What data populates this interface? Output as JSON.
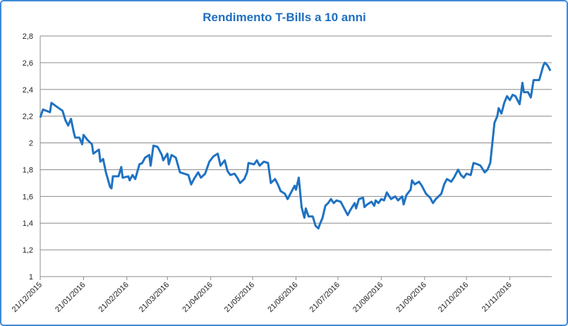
{
  "chart_data": {
    "type": "line",
    "title": "Rendimento T-Bills a 10 anni",
    "xlim": [
      "2015-12-21",
      "2016-12-21"
    ],
    "xticks": [
      {
        "value": "2015-12-21",
        "label": "21/12/2015"
      },
      {
        "value": "2016-01-21",
        "label": "21/01/2016"
      },
      {
        "value": "2016-02-21",
        "label": "21/02/2016"
      },
      {
        "value": "2016-03-21",
        "label": "21/03/2016"
      },
      {
        "value": "2016-04-21",
        "label": "21/04/2016"
      },
      {
        "value": "2016-05-21",
        "label": "21/05/2016"
      },
      {
        "value": "2016-06-21",
        "label": "21/06/2016"
      },
      {
        "value": "2016-07-21",
        "label": "21/07/2016"
      },
      {
        "value": "2016-08-21",
        "label": "21/08/2016"
      },
      {
        "value": "2016-09-21",
        "label": "21/09/2016"
      },
      {
        "value": "2016-10-21",
        "label": "21/10/2016"
      },
      {
        "value": "2016-11-21",
        "label": "21/11/2016"
      }
    ],
    "ylim": [
      1,
      2.8
    ],
    "yticks": [
      1,
      {
        "value": 1.2,
        "label": "1,2"
      },
      {
        "value": 1.4,
        "label": "1,4"
      },
      {
        "value": 1.6,
        "label": "1,6"
      },
      {
        "value": 1.8,
        "label": "1,8"
      },
      2,
      {
        "value": 2.2,
        "label": "2,2"
      },
      {
        "value": 2.4,
        "label": "2,4"
      },
      {
        "value": 2.6,
        "label": "2,6"
      },
      {
        "value": 2.8,
        "label": "2,8"
      }
    ],
    "grid": true,
    "color": "#1f72c2",
    "x": [
      "2015-12-21",
      "2015-12-23",
      "2015-12-28",
      "2015-12-29",
      "2016-01-02",
      "2016-01-06",
      "2016-01-08",
      "2016-01-10",
      "2016-01-12",
      "2016-01-14",
      "2016-01-15",
      "2016-01-18",
      "2016-01-20",
      "2016-01-21",
      "2016-01-24",
      "2016-01-27",
      "2016-01-28",
      "2016-02-01",
      "2016-02-02",
      "2016-02-04",
      "2016-02-06",
      "2016-02-09",
      "2016-02-10",
      "2016-02-11",
      "2016-02-15",
      "2016-02-17",
      "2016-02-18",
      "2016-02-22",
      "2016-02-23",
      "2016-02-25",
      "2016-02-27",
      "2016-03-01",
      "2016-03-03",
      "2016-03-05",
      "2016-03-08",
      "2016-03-09",
      "2016-03-11",
      "2016-03-14",
      "2016-03-17",
      "2016-03-18",
      "2016-03-21",
      "2016-03-22",
      "2016-03-24",
      "2016-03-27",
      "2016-03-30",
      "2016-04-02",
      "2016-04-05",
      "2016-04-07",
      "2016-04-09",
      "2016-04-12",
      "2016-04-14",
      "2016-04-17",
      "2016-04-20",
      "2016-04-23",
      "2016-04-26",
      "2016-04-28",
      "2016-05-01",
      "2016-05-03",
      "2016-05-05",
      "2016-05-08",
      "2016-05-10",
      "2016-05-12",
      "2016-05-15",
      "2016-05-17",
      "2016-05-18",
      "2016-05-22",
      "2016-05-24",
      "2016-05-26",
      "2016-05-29",
      "2016-06-01",
      "2016-06-03",
      "2016-06-06",
      "2016-06-08",
      "2016-06-10",
      "2016-06-13",
      "2016-06-15",
      "2016-06-18",
      "2016-06-20",
      "2016-06-21",
      "2016-06-23",
      "2016-06-25",
      "2016-06-27",
      "2016-06-28",
      "2016-06-30",
      "2016-07-03",
      "2016-07-05",
      "2016-07-07",
      "2016-07-08",
      "2016-07-10",
      "2016-07-12",
      "2016-07-14",
      "2016-07-16",
      "2016-07-18",
      "2016-07-20",
      "2016-07-23",
      "2016-07-26",
      "2016-07-28",
      "2016-07-30",
      "2016-08-02",
      "2016-08-03",
      "2016-08-05",
      "2016-08-08",
      "2016-08-09",
      "2016-08-11",
      "2016-08-14",
      "2016-08-16",
      "2016-08-17",
      "2016-08-19",
      "2016-08-21",
      "2016-08-23",
      "2016-08-25",
      "2016-08-28",
      "2016-08-31",
      "2016-09-02",
      "2016-09-05",
      "2016-09-06",
      "2016-09-08",
      "2016-09-11",
      "2016-09-12",
      "2016-09-14",
      "2016-09-17",
      "2016-09-19",
      "2016-09-22",
      "2016-09-25",
      "2016-09-27",
      "2016-09-29",
      "2016-10-03",
      "2016-10-05",
      "2016-10-07",
      "2016-10-10",
      "2016-10-12",
      "2016-10-15",
      "2016-10-17",
      "2016-10-19",
      "2016-10-21",
      "2016-10-24",
      "2016-10-26",
      "2016-10-29",
      "2016-10-31",
      "2016-11-03",
      "2016-11-05",
      "2016-11-07",
      "2016-11-09",
      "2016-11-10",
      "2016-11-12",
      "2016-11-13",
      "2016-11-15",
      "2016-11-17",
      "2016-11-19",
      "2016-11-21",
      "2016-11-23",
      "2016-11-25",
      "2016-11-28",
      "2016-11-30",
      "2016-12-01",
      "2016-12-04",
      "2016-12-06",
      "2016-12-08",
      "2016-12-12",
      "2016-12-15",
      "2016-12-16",
      "2016-12-18",
      "2016-12-20"
    ],
    "values": [
      2.19,
      2.25,
      2.23,
      2.3,
      2.27,
      2.24,
      2.17,
      2.13,
      2.18,
      2.08,
      2.04,
      2.04,
      1.99,
      2.06,
      2.02,
      1.99,
      1.92,
      1.95,
      1.86,
      1.88,
      1.78,
      1.67,
      1.66,
      1.75,
      1.75,
      1.82,
      1.74,
      1.75,
      1.72,
      1.76,
      1.73,
      1.84,
      1.85,
      1.89,
      1.91,
      1.83,
      1.98,
      1.97,
      1.91,
      1.87,
      1.92,
      1.84,
      1.91,
      1.89,
      1.78,
      1.77,
      1.76,
      1.69,
      1.73,
      1.78,
      1.74,
      1.77,
      1.86,
      1.9,
      1.92,
      1.83,
      1.87,
      1.79,
      1.76,
      1.77,
      1.74,
      1.7,
      1.73,
      1.78,
      1.85,
      1.84,
      1.87,
      1.83,
      1.86,
      1.85,
      1.7,
      1.73,
      1.69,
      1.64,
      1.62,
      1.58,
      1.64,
      1.68,
      1.65,
      1.74,
      1.52,
      1.44,
      1.51,
      1.45,
      1.45,
      1.38,
      1.36,
      1.39,
      1.44,
      1.53,
      1.55,
      1.58,
      1.55,
      1.57,
      1.56,
      1.5,
      1.46,
      1.5,
      1.55,
      1.51,
      1.58,
      1.59,
      1.52,
      1.54,
      1.56,
      1.53,
      1.57,
      1.55,
      1.58,
      1.57,
      1.63,
      1.58,
      1.6,
      1.57,
      1.6,
      1.54,
      1.61,
      1.65,
      1.72,
      1.69,
      1.71,
      1.68,
      1.62,
      1.59,
      1.55,
      1.58,
      1.62,
      1.69,
      1.73,
      1.71,
      1.74,
      1.8,
      1.76,
      1.74,
      1.77,
      1.76,
      1.85,
      1.84,
      1.83,
      1.78,
      1.8,
      1.85,
      2.05,
      2.15,
      2.2,
      2.26,
      2.22,
      2.3,
      2.35,
      2.32,
      2.36,
      2.35,
      2.29,
      2.45,
      2.38,
      2.38,
      2.34,
      2.47,
      2.47,
      2.58,
      2.6,
      2.58,
      2.54
    ]
  }
}
